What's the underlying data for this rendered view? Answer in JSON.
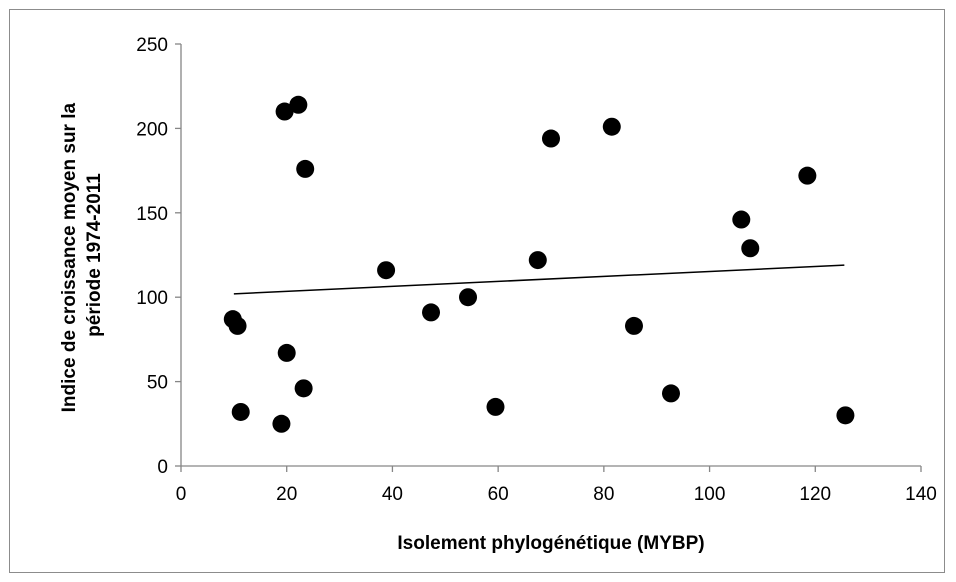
{
  "chart_data": {
    "type": "scatter",
    "title": "",
    "xlabel": "Isolement phylogénétique (MYBP)",
    "ylabel_lines": [
      "Indice de croissance moyen sur la",
      "période 1974-2011"
    ],
    "xlim": [
      0,
      140
    ],
    "ylim": [
      0,
      250
    ],
    "x_ticks": [
      0,
      20,
      40,
      60,
      80,
      100,
      120,
      140
    ],
    "y_ticks": [
      0,
      50,
      100,
      150,
      200,
      250
    ],
    "grid": false,
    "legend": "none",
    "point_color": "#000000",
    "trendline": {
      "x": [
        10,
        125.5
      ],
      "y": [
        102,
        119
      ],
      "color": "#000000"
    },
    "points": [
      {
        "x": 9.8,
        "y": 87
      },
      {
        "x": 10.7,
        "y": 83
      },
      {
        "x": 11.3,
        "y": 32
      },
      {
        "x": 19.0,
        "y": 25
      },
      {
        "x": 19.6,
        "y": 210
      },
      {
        "x": 20.0,
        "y": 67
      },
      {
        "x": 22.2,
        "y": 214
      },
      {
        "x": 23.2,
        "y": 46
      },
      {
        "x": 23.5,
        "y": 176
      },
      {
        "x": 38.8,
        "y": 116
      },
      {
        "x": 47.3,
        "y": 91
      },
      {
        "x": 54.3,
        "y": 100
      },
      {
        "x": 59.5,
        "y": 35
      },
      {
        "x": 67.5,
        "y": 122
      },
      {
        "x": 70.0,
        "y": 194
      },
      {
        "x": 81.5,
        "y": 201
      },
      {
        "x": 85.7,
        "y": 83
      },
      {
        "x": 92.7,
        "y": 43
      },
      {
        "x": 106.0,
        "y": 146
      },
      {
        "x": 107.7,
        "y": 129
      },
      {
        "x": 118.5,
        "y": 172
      },
      {
        "x": 125.7,
        "y": 30
      }
    ]
  }
}
